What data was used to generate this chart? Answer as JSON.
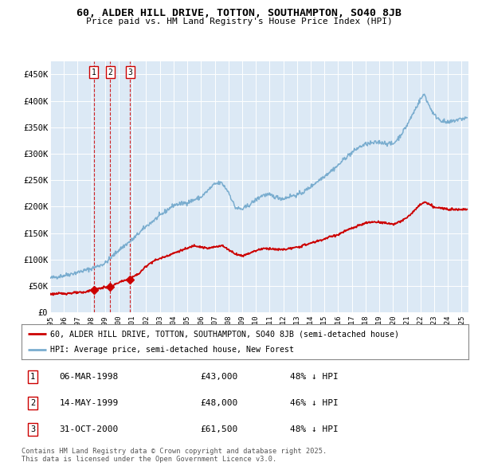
{
  "title": "60, ALDER HILL DRIVE, TOTTON, SOUTHAMPTON, SO40 8JB",
  "subtitle": "Price paid vs. HM Land Registry's House Price Index (HPI)",
  "background_color": "#ffffff",
  "plot_bg_color": "#dce9f5",
  "grid_color": "#ffffff",
  "red_line_color": "#cc0000",
  "blue_line_color": "#7aadcf",
  "sale_marker_color": "#cc0000",
  "vline_color": "#cc0000",
  "legend_label_red": "60, ALDER HILL DRIVE, TOTTON, SOUTHAMPTON, SO40 8JB (semi-detached house)",
  "legend_label_blue": "HPI: Average price, semi-detached house, New Forest",
  "transactions": [
    {
      "num": 1,
      "date": "06-MAR-1998",
      "price": 43000,
      "pct": "48%",
      "x_year": 1998.18
    },
    {
      "num": 2,
      "date": "14-MAY-1999",
      "price": 48000,
      "pct": "46%",
      "x_year": 1999.37
    },
    {
      "num": 3,
      "date": "31-OCT-2000",
      "price": 61500,
      "pct": "48%",
      "x_year": 2000.83
    }
  ],
  "footnote": "Contains HM Land Registry data © Crown copyright and database right 2025.\nThis data is licensed under the Open Government Licence v3.0.",
  "ylim": [
    0,
    475000
  ],
  "xlim_start": 1995.0,
  "xlim_end": 2025.5,
  "yticks": [
    0,
    50000,
    100000,
    150000,
    200000,
    250000,
    300000,
    350000,
    400000,
    450000
  ],
  "ytick_labels": [
    "£0",
    "£50K",
    "£100K",
    "£150K",
    "£200K",
    "£250K",
    "£300K",
    "£350K",
    "£400K",
    "£450K"
  ],
  "xticks": [
    1995,
    1996,
    1997,
    1998,
    1999,
    2000,
    2001,
    2002,
    2003,
    2004,
    2005,
    2006,
    2007,
    2008,
    2009,
    2010,
    2011,
    2012,
    2013,
    2014,
    2015,
    2016,
    2017,
    2018,
    2019,
    2020,
    2021,
    2022,
    2023,
    2024,
    2025
  ],
  "xtick_labels": [
    "1995",
    "1996",
    "1997",
    "1998",
    "1999",
    "2000",
    "2001",
    "2002",
    "2003",
    "2004",
    "2005",
    "2006",
    "2007",
    "2008",
    "2009",
    "2010",
    "2011",
    "2012",
    "2013",
    "2014",
    "2015",
    "2016",
    "2017",
    "2018",
    "2019",
    "2020",
    "2021",
    "2022",
    "2023",
    "2024",
    "2025"
  ]
}
